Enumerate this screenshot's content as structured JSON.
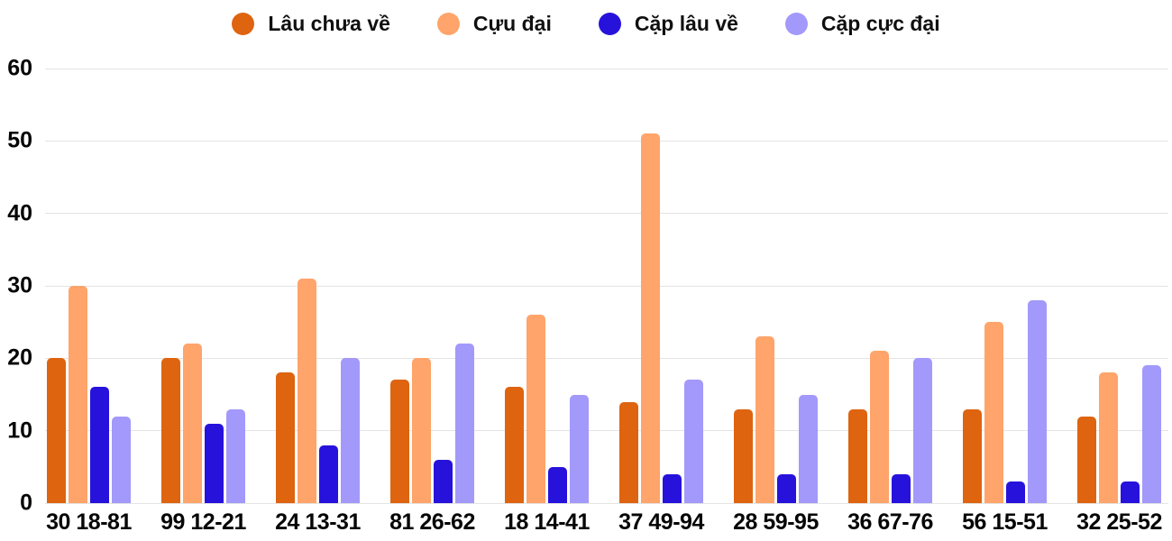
{
  "chart_data": {
    "type": "bar",
    "categories": [
      "30 18-81",
      "99 12-21",
      "24 13-31",
      "81 26-62",
      "18 14-41",
      "37 49-94",
      "28 59-95",
      "36 67-76",
      "56 15-51",
      "32 25-52"
    ],
    "series": [
      {
        "name": "Lâu chưa về",
        "color": "#de6410",
        "values": [
          20,
          20,
          18,
          17,
          16,
          14,
          13,
          13,
          13,
          12
        ]
      },
      {
        "name": "Cựu đại",
        "color": "#ffa46a",
        "values": [
          30,
          22,
          31,
          20,
          26,
          51,
          23,
          21,
          25,
          18
        ]
      },
      {
        "name": "Cặp lâu về",
        "color": "#2712dc",
        "values": [
          16,
          11,
          8,
          6,
          5,
          4,
          4,
          4,
          3,
          3
        ]
      },
      {
        "name": "Cặp cực đại",
        "color": "#a299fa",
        "values": [
          12,
          13,
          20,
          22,
          15,
          17,
          15,
          20,
          28,
          19
        ]
      }
    ],
    "yticks": [
      0,
      10,
      20,
      30,
      40,
      50,
      60
    ],
    "ylim": [
      0,
      60
    ],
    "grid": true,
    "legend_position": "top"
  },
  "colors": {
    "gridline": "#e4e4e4",
    "text": "#060606",
    "background": "#ffffff"
  }
}
